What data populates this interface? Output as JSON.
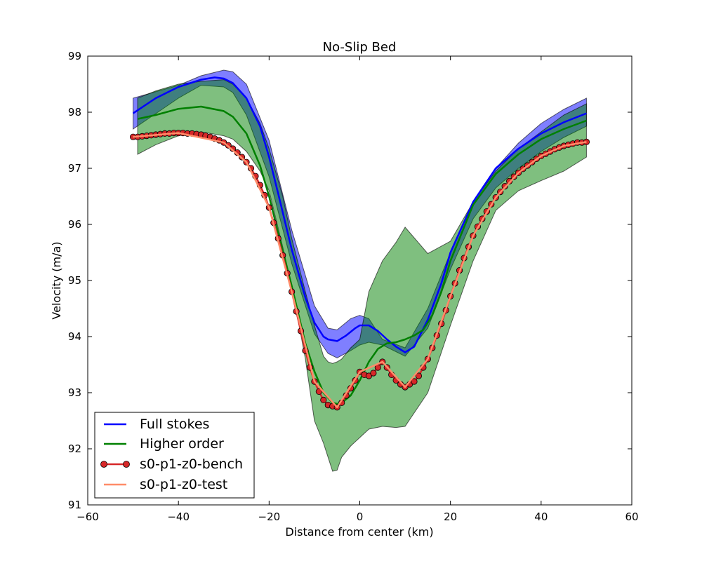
{
  "chart_data": {
    "type": "line",
    "title": "No-Slip Bed",
    "xlabel": "Distance from center (km)",
    "ylabel": "Velocity (m/a)",
    "xlim": [
      -60,
      60
    ],
    "ylim": [
      91,
      99
    ],
    "xticks": [
      -60,
      -40,
      -20,
      0,
      20,
      40,
      60
    ],
    "yticks": [
      91,
      92,
      93,
      94,
      95,
      96,
      97,
      98,
      99
    ],
    "xtick_labels": [
      "−60",
      "−40",
      "−20",
      "0",
      "20",
      "40",
      "60"
    ],
    "ytick_labels": [
      "91",
      "92",
      "93",
      "94",
      "95",
      "96",
      "97",
      "98",
      "99"
    ],
    "legend_position": "lower-left",
    "bands": [
      {
        "name": "Full stokes range",
        "color": "#0000ff",
        "x": [
          -50,
          -40,
          -35,
          -30,
          -28,
          -25,
          -20,
          -15,
          -10,
          -7,
          -5,
          -2,
          0,
          2,
          5,
          10,
          15,
          20,
          25,
          30,
          35,
          40,
          45,
          50
        ],
        "upper": [
          98.25,
          98.48,
          98.65,
          98.75,
          98.72,
          98.5,
          97.5,
          95.9,
          94.55,
          94.15,
          94.12,
          94.32,
          94.38,
          94.32,
          93.95,
          93.8,
          94.5,
          95.5,
          96.4,
          97.0,
          97.45,
          97.8,
          98.05,
          98.25
        ],
        "lower": [
          97.7,
          98.25,
          98.48,
          98.45,
          98.35,
          97.95,
          96.85,
          95.3,
          94.05,
          93.7,
          93.62,
          93.75,
          93.85,
          93.9,
          93.85,
          93.65,
          94.15,
          95.2,
          96.1,
          96.65,
          97.0,
          97.3,
          97.55,
          97.75
        ]
      },
      {
        "name": "Higher order range",
        "color": "#008000",
        "x": [
          -49,
          -45,
          -40,
          -35,
          -30,
          -28,
          -25,
          -22,
          -20,
          -17,
          -15,
          -12,
          -10,
          -8,
          -7,
          -6,
          -5,
          -4,
          -3,
          -2,
          0,
          2,
          5,
          8,
          10,
          15,
          20,
          25,
          30,
          35,
          40,
          45,
          50
        ],
        "upper": [
          98.25,
          98.38,
          98.5,
          98.55,
          98.58,
          98.5,
          98.25,
          97.8,
          97.35,
          96.5,
          95.75,
          94.8,
          94.2,
          93.65,
          93.55,
          93.52,
          93.55,
          93.6,
          93.7,
          93.8,
          93.95,
          94.8,
          95.35,
          95.68,
          95.95,
          95.48,
          95.7,
          96.4,
          96.95,
          97.35,
          97.65,
          97.95,
          98.15
        ],
        "lower": [
          97.25,
          97.42,
          97.58,
          97.65,
          97.58,
          97.52,
          97.3,
          96.95,
          96.6,
          95.6,
          94.9,
          93.6,
          92.5,
          92.1,
          91.85,
          91.6,
          91.62,
          91.85,
          91.95,
          92.05,
          92.2,
          92.35,
          92.4,
          92.38,
          92.4,
          93.0,
          94.2,
          95.35,
          96.25,
          96.6,
          96.78,
          96.95,
          97.2
        ]
      }
    ],
    "series": [
      {
        "name": "Full stokes",
        "color": "#0000ff",
        "style": "line",
        "x": [
          -50,
          -45,
          -40,
          -35,
          -32,
          -30,
          -28,
          -25,
          -22,
          -20,
          -18,
          -15,
          -12,
          -10,
          -8,
          -7,
          -5,
          -3,
          -1,
          0,
          2,
          4,
          6,
          8,
          10,
          12,
          15,
          18,
          20,
          25,
          30,
          35,
          40,
          45,
          50
        ],
        "y": [
          97.98,
          98.25,
          98.45,
          98.58,
          98.62,
          98.6,
          98.52,
          98.25,
          97.75,
          97.2,
          96.55,
          95.55,
          94.7,
          94.25,
          94.0,
          93.95,
          93.92,
          94.02,
          94.15,
          94.2,
          94.2,
          94.1,
          93.95,
          93.82,
          93.72,
          93.82,
          94.3,
          94.95,
          95.5,
          96.4,
          97.0,
          97.35,
          97.62,
          97.82,
          97.98
        ]
      },
      {
        "name": "Higher order",
        "color": "#008000",
        "style": "line",
        "x": [
          -49,
          -45,
          -40,
          -35,
          -30,
          -28,
          -25,
          -22,
          -20,
          -18,
          -15,
          -12,
          -10,
          -8,
          -6,
          -5,
          -4,
          -2,
          0,
          2,
          4,
          6,
          8,
          10,
          12,
          14,
          16,
          18,
          20,
          25,
          30,
          35,
          40,
          45,
          50
        ],
        "y": [
          97.88,
          97.95,
          98.06,
          98.1,
          98.02,
          97.92,
          97.62,
          97.05,
          96.5,
          95.85,
          94.9,
          93.88,
          93.38,
          93.0,
          92.82,
          92.8,
          92.82,
          92.95,
          93.22,
          93.55,
          93.78,
          93.88,
          93.9,
          93.95,
          94.02,
          94.12,
          94.38,
          94.8,
          95.35,
          96.35,
          96.9,
          97.25,
          97.52,
          97.7,
          97.85
        ]
      },
      {
        "name": "s0-p1-z0-bench",
        "color": "#d62728",
        "marker_color": "#d62728",
        "style": "line-markers",
        "x": [
          -50,
          -49,
          -48,
          -47,
          -46,
          -45,
          -44,
          -43,
          -42,
          -41,
          -40,
          -39,
          -38,
          -37,
          -36,
          -35,
          -34,
          -33,
          -32,
          -31,
          -30,
          -29,
          -28,
          -27,
          -26,
          -25,
          -24,
          -23,
          -22,
          -21,
          -20,
          -19,
          -18,
          -17,
          -16,
          -15,
          -14,
          -13,
          -12,
          -11,
          -10,
          -9,
          -8,
          -7,
          -6,
          -5,
          -4,
          -3,
          -2,
          -1,
          0,
          1,
          2,
          3,
          4,
          5,
          6,
          7,
          8,
          9,
          10,
          11,
          12,
          13,
          14,
          15,
          16,
          17,
          18,
          19,
          20,
          21,
          22,
          23,
          24,
          25,
          26,
          27,
          28,
          29,
          30,
          31,
          32,
          33,
          34,
          35,
          36,
          37,
          38,
          39,
          40,
          41,
          42,
          43,
          44,
          45,
          46,
          47,
          48,
          49,
          50
        ],
        "y": [
          97.56,
          97.56,
          97.57,
          97.58,
          97.59,
          97.6,
          97.61,
          97.62,
          97.62,
          97.63,
          97.63,
          97.63,
          97.62,
          97.62,
          97.61,
          97.6,
          97.58,
          97.56,
          97.53,
          97.5,
          97.46,
          97.41,
          97.35,
          97.28,
          97.2,
          97.11,
          97.0,
          96.86,
          96.7,
          96.52,
          96.3,
          96.03,
          95.75,
          95.45,
          95.13,
          94.8,
          94.45,
          94.1,
          93.75,
          93.45,
          93.2,
          93.02,
          92.87,
          92.78,
          92.76,
          92.74,
          92.82,
          92.95,
          93.08,
          93.22,
          93.37,
          93.32,
          93.3,
          93.35,
          93.45,
          93.55,
          93.45,
          93.32,
          93.22,
          93.15,
          93.1,
          93.15,
          93.2,
          93.3,
          93.45,
          93.6,
          93.8,
          94.02,
          94.23,
          94.47,
          94.72,
          94.95,
          95.18,
          95.4,
          95.6,
          95.8,
          95.96,
          96.1,
          96.23,
          96.36,
          96.48,
          96.58,
          96.68,
          96.77,
          96.85,
          96.92,
          96.99,
          97.05,
          97.11,
          97.17,
          97.22,
          97.26,
          97.3,
          97.34,
          97.37,
          97.4,
          97.42,
          97.44,
          97.46,
          97.46,
          97.47
        ]
      },
      {
        "name": "s0-p1-z0-test",
        "color": "#ff8c69",
        "style": "line",
        "x": [
          -50,
          -40,
          -30,
          -25,
          -20,
          -15,
          -10,
          -5,
          0,
          5,
          10,
          15,
          20,
          25,
          30,
          35,
          40,
          45,
          50
        ],
        "y": [
          97.56,
          97.63,
          97.46,
          97.11,
          96.3,
          94.8,
          93.2,
          92.74,
          93.37,
          93.55,
          93.1,
          93.6,
          94.72,
          95.8,
          96.48,
          96.92,
          97.22,
          97.4,
          97.47
        ]
      }
    ]
  }
}
